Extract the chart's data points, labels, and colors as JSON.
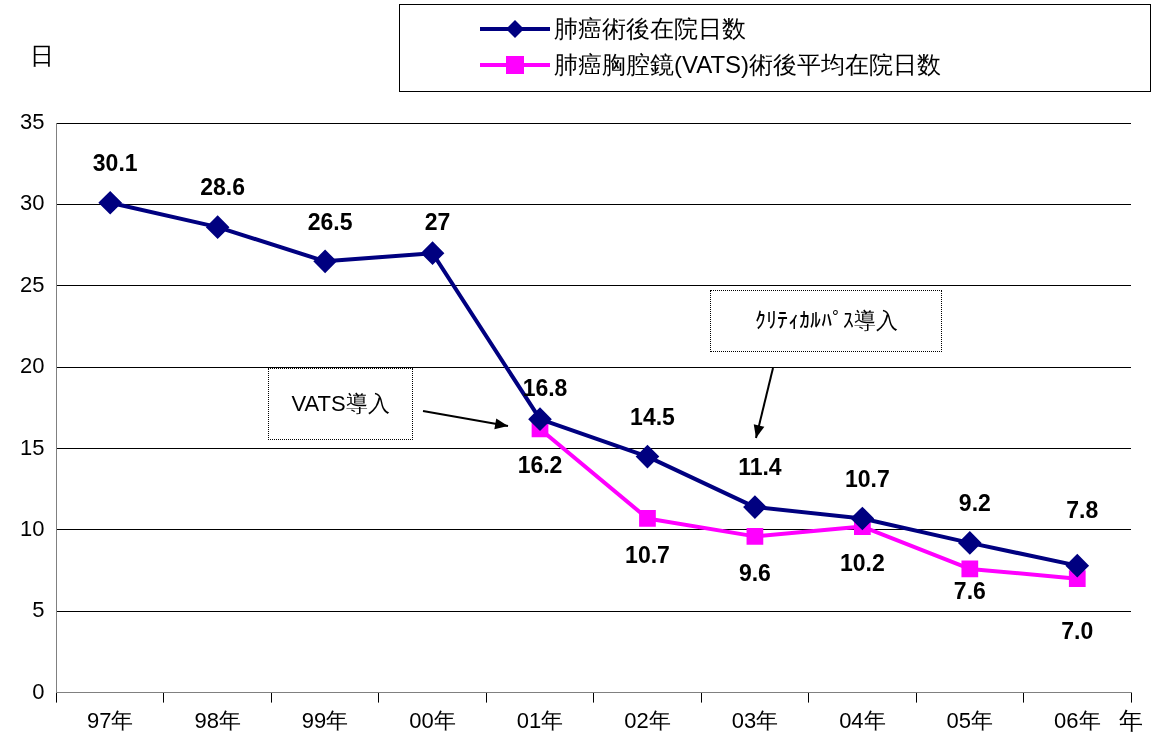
{
  "chart_data": {
    "type": "line",
    "ylabel": "日",
    "xlabel": "年",
    "categories": [
      "97年",
      "98年",
      "99年",
      "00年",
      "01年",
      "02年",
      "03年",
      "04年",
      "05年",
      "06年"
    ],
    "series": [
      {
        "name": "肺癌術後在院日数",
        "color": "#000080",
        "marker": "diamond",
        "values": [
          30.1,
          28.6,
          26.5,
          27,
          16.8,
          14.5,
          11.4,
          10.7,
          9.2,
          7.8
        ],
        "value_labels": [
          "30.1",
          "28.6",
          "26.5",
          "27",
          "16.8",
          "14.5",
          "11.4",
          "10.7",
          "9.2",
          "7.8"
        ]
      },
      {
        "name": "肺癌胸腔鏡(VATS)術後平均在院日数",
        "color": "#ff00ff",
        "marker": "square",
        "values": [
          null,
          null,
          null,
          null,
          16.2,
          10.7,
          9.6,
          10.2,
          7.6,
          7.0
        ],
        "value_labels": [
          null,
          null,
          null,
          null,
          "16.2",
          "10.7",
          "9.6",
          "10.2",
          "7.6",
          "7.0"
        ]
      }
    ],
    "ylim": [
      0,
      35
    ],
    "yticks": [
      0,
      5,
      10,
      15,
      20,
      25,
      30,
      35
    ],
    "grid": "y",
    "legend": "top right",
    "line_style": "solid",
    "annotations": [
      "VATS導入",
      "ｸﾘﾃｨｶﾙﾊﾟｽ導入"
    ]
  }
}
